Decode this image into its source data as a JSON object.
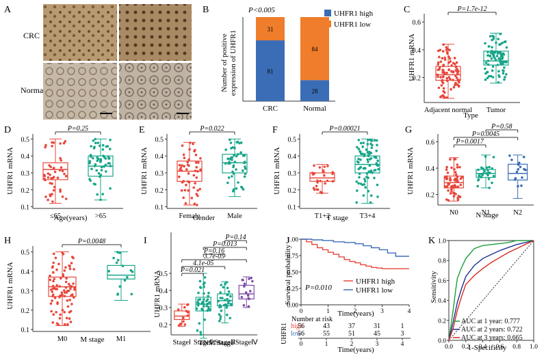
{
  "panels": {
    "A": {
      "letter": "A",
      "row1": "CRC",
      "row2": "Normal"
    },
    "B": {
      "letter": "B",
      "pvalue": "P<0.005",
      "ylabel_line1": "Number of positive",
      "ylabel_line2": "expression of UHFR1",
      "legend": [
        "UHFR1 high",
        "UHFR1 low"
      ]
    },
    "C": {
      "letter": "C",
      "pvalue": "P=1.7e-12",
      "ylabel": "UHFR1 mRNA",
      "xlabel": "Type"
    },
    "D": {
      "letter": "D",
      "pvalue": "P=0.25",
      "ylabel": "UHFR1 mRNA",
      "xlabel": "Age(years)"
    },
    "E": {
      "letter": "E",
      "pvalue": "P=0.022",
      "ylabel": "UHFR1 mRNA",
      "xlabel": "Gender"
    },
    "F": {
      "letter": "F",
      "pvalue": "P=0.00021",
      "ylabel": "UHFR1 mRNA",
      "xlabel": "T stage"
    },
    "G": {
      "letter": "G",
      "pvalues": [
        "P=0.58",
        "P=0.0045",
        "P=0.0017"
      ],
      "ylabel": "UHFR1 mRNA",
      "xlabel": "N stage"
    },
    "H": {
      "letter": "H",
      "pvalue": "P=0.0048",
      "ylabel": "UHFR1 mRNA",
      "xlabel": "M stage"
    },
    "I": {
      "letter": "I",
      "pvalues": [
        "P=0.14",
        "P=0.013",
        "P=0.16",
        "3.7e-05",
        "4.1e-05",
        "P=0.021"
      ],
      "ylabel": "UHFR1 mRNA",
      "xlabel": "TNM Stage"
    },
    "J": {
      "letter": "J",
      "ylabel": "Survival probability",
      "xlabel": "Time(years)",
      "pvalue": "P=0.010",
      "legend": [
        "UHFR1 high",
        "UHFR1 low"
      ],
      "risk_title": "Number at risk",
      "risk_ylabel": "UHFR1",
      "risk_xlabel": "Time(years)",
      "risk_rows": [
        {
          "label": "high",
          "values": [
            "56",
            "43",
            "37",
            "31",
            "1"
          ]
        },
        {
          "label": "low",
          "values": [
            "56",
            "55",
            "51",
            "45",
            "3"
          ]
        }
      ]
    },
    "K": {
      "letter": "K",
      "ylabel": "Sensitivity",
      "xlabel": "1-Specificity",
      "legend": [
        "AUC at 1 year: 0.777",
        "AUC at 2 years: 0.722",
        "AUC at 3 years: 0.665"
      ]
    }
  },
  "colors": {
    "red": "#e8473b",
    "teal": "#17a589",
    "blue": "#3b6db6",
    "orange": "#ef7d2b",
    "purple": "#7d4ba8",
    "navy": "#1f2d8f",
    "green": "#1a9e3a",
    "redroc": "#d7261e"
  },
  "chart_data": [
    {
      "panel": "B",
      "type": "bar",
      "categories": [
        "CRC",
        "Normal"
      ],
      "series": [
        {
          "name": "UHFR1 high",
          "values": [
            81,
            28
          ]
        },
        {
          "name": "UHFR1 low",
          "values": [
            31,
            84
          ]
        }
      ],
      "stacked": true,
      "ylim": [
        0,
        112
      ]
    },
    {
      "panel": "C",
      "type": "scatter",
      "subtype": "box",
      "categories": [
        "Adjacent normal",
        "Tumor"
      ],
      "yticks": [
        "0.2",
        "0.4",
        "0.6"
      ],
      "ylim": [
        0.02,
        0.66
      ],
      "groups": [
        {
          "name": "Adjacent normal",
          "min": 0.05,
          "q1": 0.18,
          "median": 0.22,
          "q3": 0.28,
          "max": 0.44,
          "n": 90
        },
        {
          "name": "Tumor",
          "min": 0.16,
          "q1": 0.29,
          "median": 0.32,
          "q3": 0.39,
          "max": 0.52,
          "n": 85
        }
      ]
    },
    {
      "panel": "D",
      "type": "scatter",
      "subtype": "box",
      "categories": [
        "≤65",
        ">65"
      ],
      "yticks": [
        "0.1",
        "0.2",
        "0.3",
        "0.4",
        "0.5"
      ],
      "ylim": [
        0.09,
        0.53
      ],
      "groups": [
        {
          "name": "≤65",
          "min": 0.12,
          "q1": 0.26,
          "median": 0.32,
          "q3": 0.36,
          "max": 0.5,
          "n": 45
        },
        {
          "name": ">65",
          "min": 0.14,
          "q1": 0.28,
          "median": 0.34,
          "q3": 0.4,
          "max": 0.5,
          "n": 55
        }
      ]
    },
    {
      "panel": "E",
      "type": "scatter",
      "subtype": "box",
      "categories": [
        "Female",
        "Male"
      ],
      "yticks": [
        "0.1",
        "0.2",
        "0.3",
        "0.4",
        "0.5"
      ],
      "ylim": [
        0.09,
        0.53
      ],
      "groups": [
        {
          "name": "Female",
          "min": 0.11,
          "q1": 0.25,
          "median": 0.31,
          "q3": 0.37,
          "max": 0.48,
          "n": 50
        },
        {
          "name": "Male",
          "min": 0.16,
          "q1": 0.3,
          "median": 0.36,
          "q3": 0.41,
          "max": 0.5,
          "n": 50
        }
      ]
    },
    {
      "panel": "F",
      "type": "scatter",
      "subtype": "box",
      "categories": [
        "T1+2",
        "T3+4"
      ],
      "yticks": [
        "0.1",
        "0.2",
        "0.3",
        "0.4",
        "0.5"
      ],
      "ylim": [
        0.09,
        0.53
      ],
      "groups": [
        {
          "name": "T1+2",
          "min": 0.18,
          "q1": 0.25,
          "median": 0.27,
          "q3": 0.3,
          "max": 0.35,
          "n": 25
        },
        {
          "name": "T3+4",
          "min": 0.12,
          "q1": 0.3,
          "median": 0.35,
          "q3": 0.4,
          "max": 0.5,
          "n": 85
        }
      ]
    },
    {
      "panel": "G",
      "type": "scatter",
      "subtype": "box",
      "categories": [
        "N0",
        "N1",
        "N2"
      ],
      "yticks": [
        "0.2",
        "0.4",
        "0.6"
      ],
      "ylim": [
        0.12,
        0.66
      ],
      "groups": [
        {
          "name": "N0",
          "min": 0.15,
          "q1": 0.25,
          "median": 0.29,
          "q3": 0.34,
          "max": 0.48,
          "n": 60
        },
        {
          "name": "N1",
          "min": 0.25,
          "q1": 0.33,
          "median": 0.36,
          "q3": 0.39,
          "max": 0.5,
          "n": 30
        },
        {
          "name": "N2",
          "min": 0.17,
          "q1": 0.31,
          "median": 0.36,
          "q3": 0.43,
          "max": 0.5,
          "n": 15
        }
      ]
    },
    {
      "panel": "H",
      "type": "scatter",
      "subtype": "box",
      "categories": [
        "M0",
        "M1"
      ],
      "yticks": [
        "0.1",
        "0.2",
        "0.3",
        "0.4",
        "0.5"
      ],
      "ylim": [
        0.09,
        0.53
      ],
      "groups": [
        {
          "name": "M0",
          "min": 0.12,
          "q1": 0.27,
          "median": 0.32,
          "q3": 0.37,
          "max": 0.5,
          "n": 90
        },
        {
          "name": "M1",
          "min": 0.25,
          "q1": 0.36,
          "median": 0.38,
          "q3": 0.43,
          "max": 0.5,
          "n": 15
        }
      ]
    },
    {
      "panel": "I",
      "type": "scatter",
      "subtype": "box",
      "categories": [
        "StageⅠ",
        "StageⅡ",
        "StageⅢ",
        "StageⅣ"
      ],
      "yticks": [
        "0.2",
        "0.3",
        "0.4",
        "0.5"
      ],
      "ylim": [
        0.14,
        0.74
      ],
      "groups": [
        {
          "name": "StageⅠ",
          "min": 0.19,
          "q1": 0.23,
          "median": 0.25,
          "q3": 0.28,
          "max": 0.32,
          "n": 15
        },
        {
          "name": "StageⅡ",
          "min": 0.12,
          "q1": 0.28,
          "median": 0.32,
          "q3": 0.36,
          "max": 0.5,
          "n": 40
        },
        {
          "name": "StageⅢ",
          "min": 0.21,
          "q1": 0.31,
          "median": 0.34,
          "q3": 0.38,
          "max": 0.45,
          "n": 35
        },
        {
          "name": "StageⅣ",
          "min": 0.3,
          "q1": 0.35,
          "median": 0.38,
          "q3": 0.43,
          "max": 0.48,
          "n": 15
        }
      ]
    },
    {
      "panel": "J",
      "type": "line",
      "xlabel": "Time(years)",
      "ylabel": "Survival probability",
      "xticks": [
        "0",
        "1",
        "2",
        "3",
        "4"
      ],
      "yticks": [
        "0.00",
        "0.25",
        "0.50",
        "0.75",
        "1.00"
      ],
      "xlim": [
        0,
        4
      ],
      "ylim": [
        0,
        1
      ],
      "series": [
        {
          "name": "UHFR1 high",
          "x": [
            0,
            0.2,
            0.4,
            0.6,
            0.8,
            1.0,
            1.2,
            1.4,
            1.6,
            1.8,
            2.0,
            2.2,
            2.4,
            2.6,
            2.8,
            3.0,
            4.0
          ],
          "y": [
            1.0,
            0.96,
            0.92,
            0.87,
            0.84,
            0.8,
            0.77,
            0.73,
            0.69,
            0.66,
            0.64,
            0.61,
            0.59,
            0.57,
            0.56,
            0.55,
            0.55
          ]
        },
        {
          "name": "UHFR1 low",
          "x": [
            0,
            0.4,
            0.8,
            1.2,
            1.6,
            2.0,
            2.3,
            2.6,
            2.9,
            3.2,
            3.5,
            4.0
          ],
          "y": [
            1.0,
            0.99,
            0.98,
            0.96,
            0.95,
            0.93,
            0.9,
            0.87,
            0.84,
            0.79,
            0.74,
            0.74
          ]
        }
      ]
    },
    {
      "panel": "K",
      "type": "line",
      "xlabel": "1-Specificity",
      "ylabel": "Sensitivity",
      "xticks": [
        "0.0",
        "0.2",
        "0.4",
        "0.6",
        "0.8",
        "1.0"
      ],
      "yticks": [
        "0.0",
        "0.2",
        "0.4",
        "0.6",
        "0.8",
        "1.0"
      ],
      "xlim": [
        0,
        1
      ],
      "ylim": [
        0,
        1
      ],
      "series": [
        {
          "name": "AUC at 1 year: 0.777",
          "x": [
            0,
            0.05,
            0.08,
            0.1,
            0.15,
            0.2,
            0.25,
            0.3,
            0.4,
            0.5,
            0.6,
            0.7,
            0.8,
            1.0
          ],
          "y": [
            0,
            0.3,
            0.5,
            0.62,
            0.73,
            0.82,
            0.87,
            0.92,
            0.95,
            0.96,
            0.97,
            0.98,
            1.0,
            1.0
          ]
        },
        {
          "name": "AUC at 2 years: 0.722",
          "x": [
            0,
            0.05,
            0.1,
            0.15,
            0.2,
            0.3,
            0.4,
            0.5,
            0.6,
            0.7,
            0.8,
            0.9,
            1.0
          ],
          "y": [
            0,
            0.18,
            0.38,
            0.52,
            0.64,
            0.75,
            0.82,
            0.86,
            0.9,
            0.93,
            0.96,
            0.98,
            1.0
          ]
        },
        {
          "name": "AUC at 3 years: 0.665",
          "x": [
            0,
            0.05,
            0.1,
            0.15,
            0.2,
            0.3,
            0.4,
            0.5,
            0.6,
            0.7,
            0.8,
            0.9,
            1.0
          ],
          "y": [
            0,
            0.12,
            0.3,
            0.44,
            0.56,
            0.65,
            0.72,
            0.78,
            0.83,
            0.88,
            0.92,
            0.96,
            1.0
          ]
        }
      ]
    }
  ]
}
